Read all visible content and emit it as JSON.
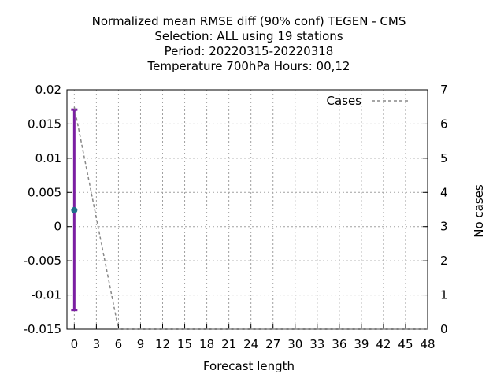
{
  "chart_data": {
    "type": "line",
    "title_lines": [
      "Normalized mean RMSE diff (90% conf) TEGEN - CMS",
      "Selection: ALL using    19 stations",
      "Period: 20220315-20220318",
      "Temperature 700hPa   Hours:  00,12"
    ],
    "xlabel": "Forecast length",
    "ylabel": "",
    "y2label": "No cases",
    "xlim": [
      -1,
      48
    ],
    "ylim": [
      -0.015,
      0.02
    ],
    "y2lim": [
      0,
      7
    ],
    "xticks": [
      0,
      3,
      6,
      9,
      12,
      15,
      18,
      21,
      24,
      27,
      30,
      33,
      36,
      39,
      42,
      45,
      48
    ],
    "yticks": [
      {
        "value": 0.02,
        "label": "0.02"
      },
      {
        "value": 0.015,
        "label": "0.015"
      },
      {
        "value": 0.01,
        "label": "0.01"
      },
      {
        "value": 0.005,
        "label": "0.005"
      },
      {
        "value": 0,
        "label": "0"
      },
      {
        "value": -0.005,
        "label": "-0.005"
      },
      {
        "value": -0.01,
        "label": "-0.01"
      },
      {
        "value": -0.015,
        "label": "-0.015"
      }
    ],
    "y2ticks": [
      0,
      1,
      2,
      3,
      4,
      5,
      6,
      7
    ],
    "grid": true,
    "legend_position": "top-right",
    "series": [
      {
        "kind": "errorbar",
        "x": [
          0
        ],
        "y": [
          0.0024
        ],
        "lower": [
          -0.0122
        ],
        "upper": [
          0.0171
        ],
        "color": "#7b1fa2"
      },
      {
        "kind": "point",
        "x": [
          0
        ],
        "y": [
          0.0024
        ],
        "color": "#1f6f8b"
      },
      {
        "name": "Cases",
        "kind": "line",
        "axis": "y2",
        "dashed": true,
        "color": "#888888",
        "x": [
          0,
          6,
          12,
          18,
          24,
          30,
          36,
          42,
          48
        ],
        "y": [
          6.5,
          0,
          0,
          0,
          0,
          0,
          0,
          0,
          0
        ]
      }
    ]
  }
}
